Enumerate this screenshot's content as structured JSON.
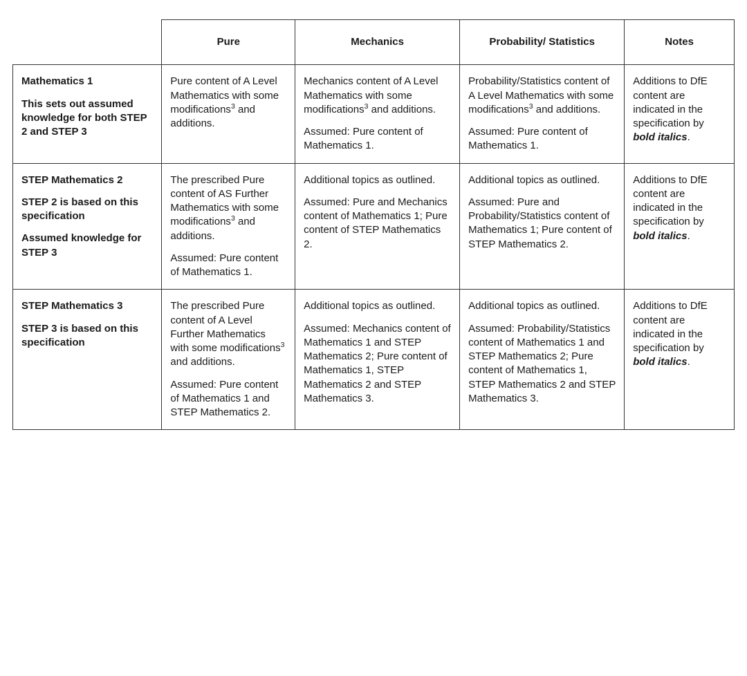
{
  "columns": {
    "pure": "Pure",
    "mechanics": "Mechanics",
    "prob_stats": "Probability/ Statistics",
    "notes": "Notes"
  },
  "rows": [
    {
      "title": "Mathematics 1",
      "subs": [
        "This sets out assumed knowledge for both STEP 2 and STEP 3"
      ],
      "pure": [
        "Pure content of A Level Mathematics with some modifications³ and additions."
      ],
      "mechanics": [
        "Mechanics content of A Level Mathematics with some modifications³ and additions.",
        "Assumed: Pure content of Mathematics 1."
      ],
      "prob_stats": [
        "Probability/Statistics content of A Level Mathematics with some modifications³ and additions.",
        "Assumed: Pure content of Mathematics 1."
      ],
      "notes_prefix": "Additions to DfE content are indicated in the specification by ",
      "notes_em": "bold italics",
      "notes_suffix": "."
    },
    {
      "title": "STEP Mathematics 2",
      "subs": [
        "STEP 2 is based on this specification",
        "Assumed knowledge for STEP 3"
      ],
      "pure": [
        "The prescribed Pure content of AS Further Mathematics with some modifications³ and additions.",
        "Assumed: Pure content of Mathematics 1."
      ],
      "mechanics": [
        "Additional topics as outlined.",
        "Assumed: Pure and Mechanics content of Mathematics 1; Pure content of STEP Mathematics 2."
      ],
      "prob_stats": [
        "Additional topics as outlined.",
        "Assumed: Pure and Probability/Statistics content of Mathematics 1; Pure content of STEP Mathematics 2."
      ],
      "notes_prefix": "Additions to DfE content are indicated in the specification by ",
      "notes_em": "bold italics",
      "notes_suffix": "."
    },
    {
      "title": "STEP Mathematics 3",
      "subs": [
        "STEP 3 is based on this specification"
      ],
      "pure": [
        "The prescribed Pure content of A Level Further Mathematics with some modifications³ and additions.",
        "Assumed: Pure content of Mathematics 1 and STEP Mathematics 2."
      ],
      "mechanics": [
        "Additional topics as outlined.",
        "Assumed: Mechanics content of Mathematics 1 and STEP Mathematics 2; Pure content of Mathematics 1, STEP Mathematics 2 and STEP Mathematics 3."
      ],
      "prob_stats": [
        "Additional topics as outlined.",
        "Assumed: Probability/Statistics content of Mathematics 1 and STEP Mathematics 2; Pure content of Mathematics 1, STEP Mathematics 2 and STEP Mathematics 3."
      ],
      "notes_prefix": "Additions to DfE content are indicated in the specification by ",
      "notes_em": "bold italics",
      "notes_suffix": "."
    }
  ]
}
